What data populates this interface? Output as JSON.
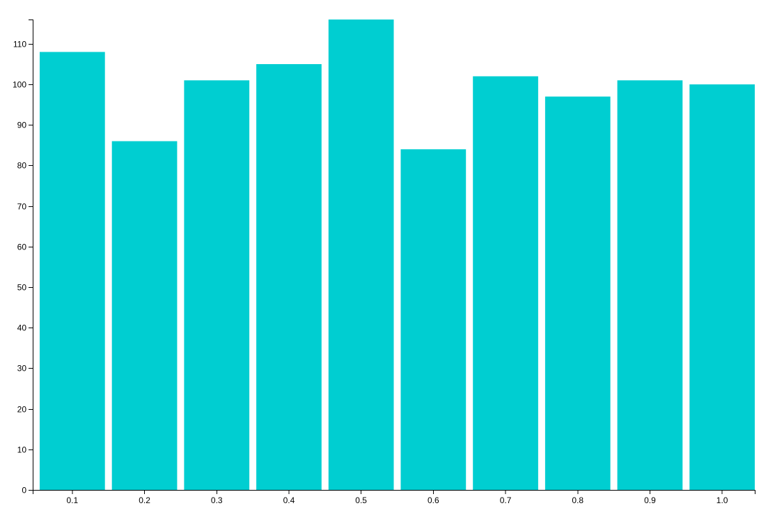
{
  "chart_data": {
    "type": "bar",
    "categories": [
      "0.1",
      "0.2",
      "0.3",
      "0.4",
      "0.5",
      "0.6",
      "0.7",
      "0.8",
      "0.9",
      "1.0"
    ],
    "values": [
      108,
      86,
      101,
      105,
      116,
      84,
      102,
      97,
      101,
      100
    ],
    "title": "",
    "xlabel": "",
    "ylabel": "",
    "ylim": [
      0,
      116
    ],
    "yticks": [
      0,
      10,
      20,
      30,
      40,
      50,
      60,
      70,
      80,
      90,
      100,
      110
    ],
    "bar_color": "#00CED1",
    "grid": false,
    "legend": "none"
  }
}
